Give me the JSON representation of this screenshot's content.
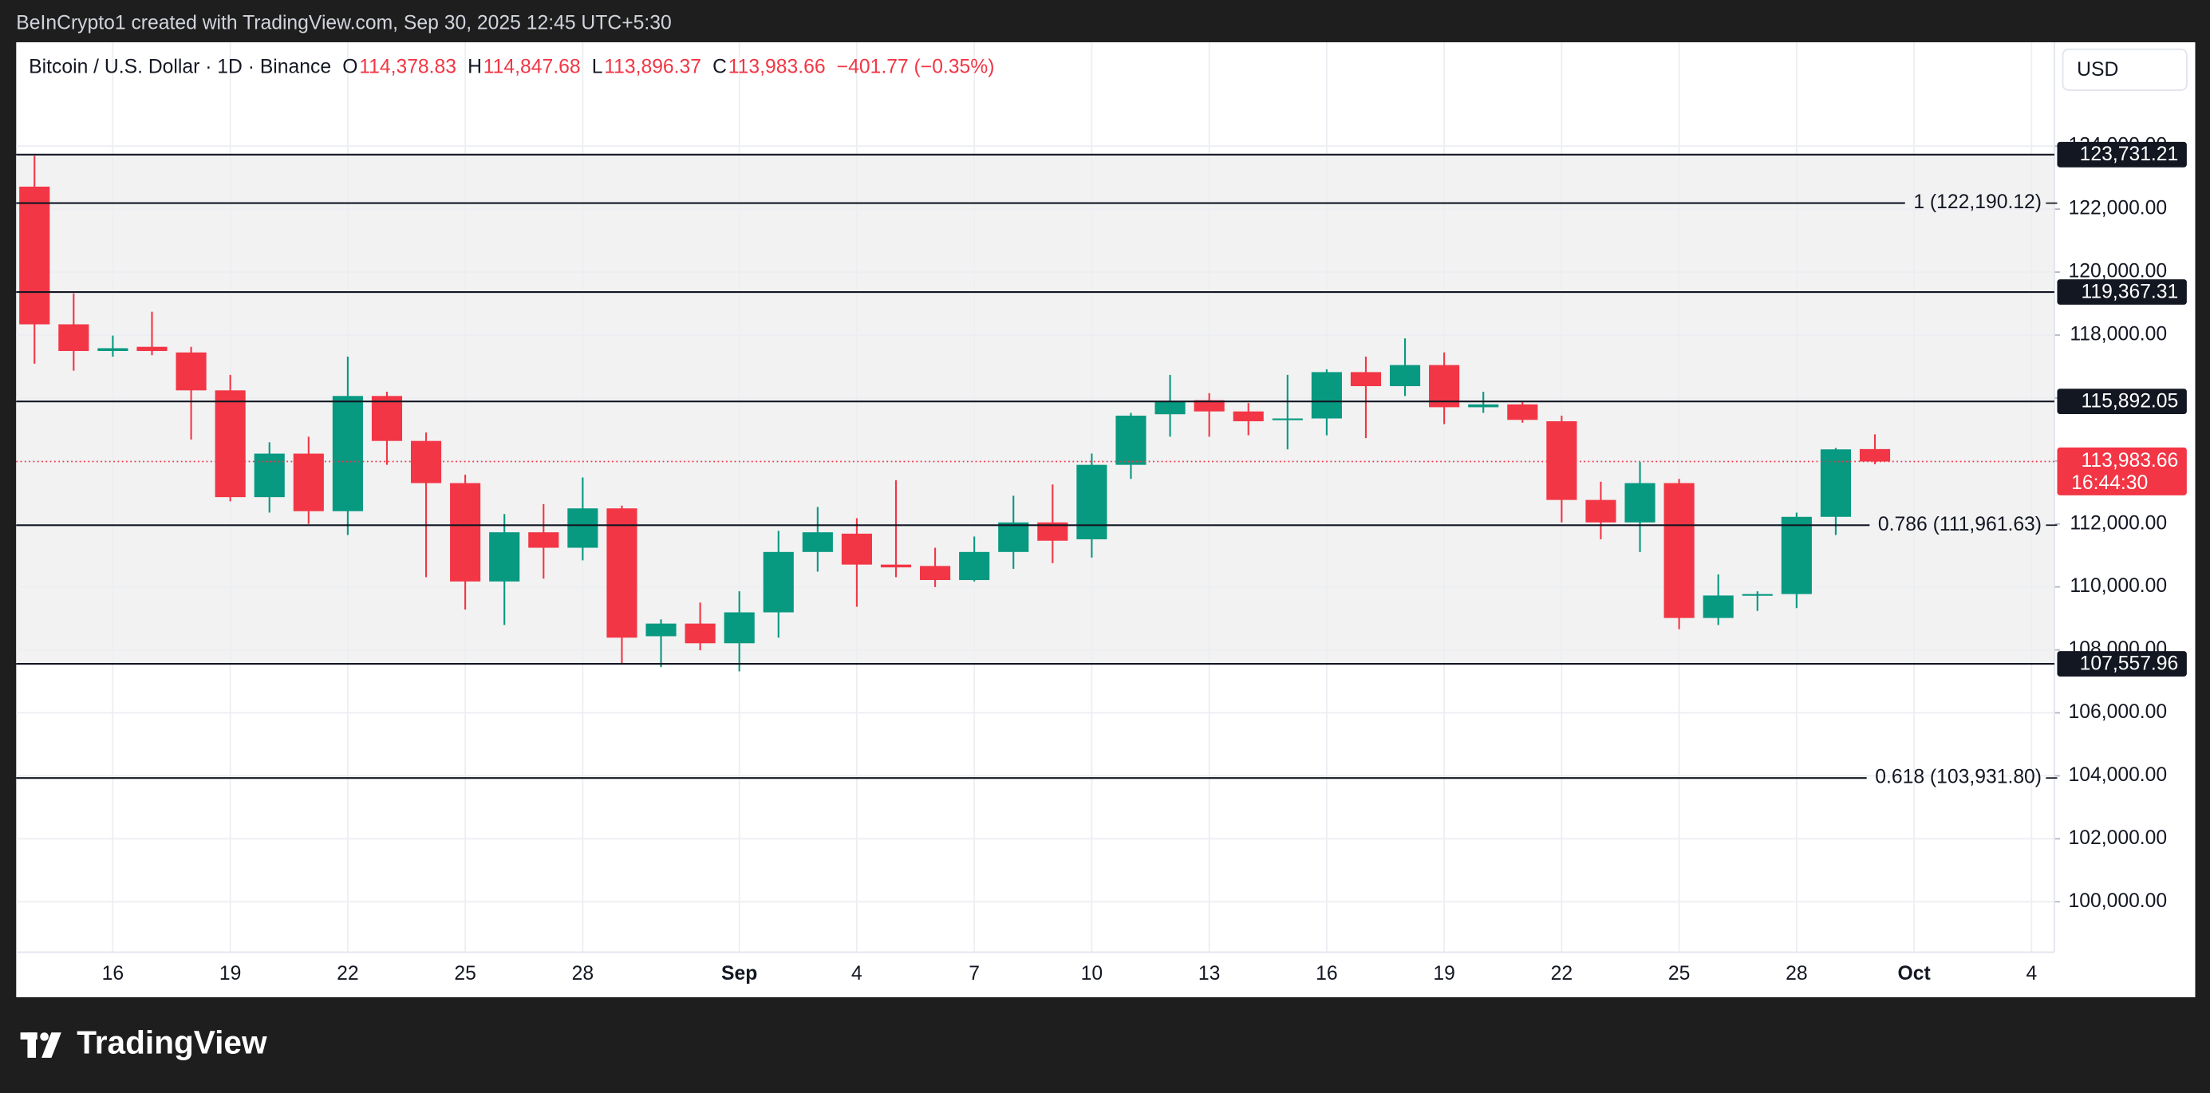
{
  "header": {
    "attribution": "BeInCrypto1 created with TradingView.com, Sep 30, 2025 12:45 UTC+5:30",
    "symbol": "Bitcoin / U.S. Dollar · 1D · Binance",
    "ohlc": [
      {
        "key": "O",
        "value": "114,378.83"
      },
      {
        "key": "H",
        "value": "114,847.68"
      },
      {
        "key": "L",
        "value": "113,896.37"
      },
      {
        "key": "C",
        "value": "113,983.66"
      }
    ],
    "change": "−401.77 (−0.35%)",
    "currency": "USD"
  },
  "footer": {
    "brand": "TradingView"
  },
  "chart_data": {
    "type": "candlestick",
    "up_color": "#089981",
    "down_color": "#f23645",
    "grid": true,
    "categories": [
      null,
      null,
      "16",
      null,
      null,
      "19",
      null,
      null,
      "22",
      null,
      null,
      "25",
      null,
      null,
      "28",
      null,
      null,
      null,
      "Sep",
      null,
      null,
      "4",
      null,
      null,
      "7",
      null,
      null,
      "10",
      null,
      null,
      "13",
      null,
      null,
      "16",
      null,
      null,
      "19",
      null,
      null,
      "22",
      null,
      null,
      "25",
      null,
      null,
      "28",
      null,
      null,
      "Oct",
      null,
      null,
      "4"
    ],
    "open": [
      122714,
      118341,
      117493,
      117627,
      117448,
      116243,
      112852,
      114235,
      112406,
      116065,
      114637,
      113298,
      110174,
      111736,
      111245,
      112495,
      108434,
      108836,
      108211,
      109193,
      111111,
      111692,
      110710,
      110665,
      110219,
      111111,
      112049,
      111513,
      113878,
      115485,
      115931,
      115574,
      115306,
      115351,
      116823,
      116377,
      117047,
      115708,
      115797,
      115262,
      112763,
      112049,
      113298,
      109014,
      109728,
      109773,
      112227,
      114378.83,
      null,
      null,
      null,
      null
    ],
    "high": [
      123696,
      119323,
      117984,
      118742,
      117627,
      116734,
      114593,
      114771,
      117314,
      116199,
      114905,
      113566,
      112316,
      112629,
      113477,
      112584,
      108970,
      109505,
      109862,
      111781,
      112540,
      112183,
      113388,
      111245,
      111602,
      112896,
      113254,
      114235,
      115530,
      116734,
      116154,
      115842,
      116734,
      116913,
      117314,
      117895,
      117448,
      116199,
      115887,
      115440,
      113343,
      113968,
      113432,
      110398,
      109862,
      112361,
      114414,
      114847.68,
      null,
      null,
      null,
      null
    ],
    "low": [
      117091,
      116868,
      117314,
      117359,
      114682,
      112718,
      112361,
      112004,
      111647,
      113878,
      110308,
      109282,
      108791,
      110264,
      110844,
      107542,
      107452,
      107988,
      107318,
      108389,
      110487,
      109371,
      110308,
      109996,
      110174,
      110576,
      110755,
      110933,
      113432,
      114771,
      114771,
      114816,
      114369,
      114816,
      114727,
      116065,
      115172,
      115529,
      115217,
      112049,
      111513,
      111111,
      108657,
      108791,
      109238,
      109326,
      111647,
      113896.37,
      null,
      null,
      null,
      null
    ],
    "close": [
      118341,
      117493,
      117582,
      117493,
      116243,
      112852,
      114235,
      112406,
      116065,
      114637,
      113298,
      110174,
      111736,
      111245,
      112495,
      108389,
      108836,
      108211,
      109193,
      111111,
      111736,
      110710,
      110621,
      110219,
      111111,
      112049,
      111468,
      113878,
      115440,
      115887,
      115574,
      115262,
      115351,
      116823,
      116377,
      117047,
      115708,
      115797,
      115306,
      112763,
      112049,
      113298,
      109014,
      109728,
      109773,
      112227,
      114369,
      113983.66,
      null,
      null,
      null,
      null
    ],
    "ylim": [
      98400,
      127300
    ],
    "yticks": [
      {
        "value": 100000,
        "label": "100,000.00"
      },
      {
        "value": 102000,
        "label": "102,000.00"
      },
      {
        "value": 104000,
        "label": "104,000.00"
      },
      {
        "value": 106000,
        "label": "106,000.00"
      },
      {
        "value": 108000,
        "label": "108,000.00"
      },
      {
        "value": 110000,
        "label": "110,000.00"
      },
      {
        "value": 112000,
        "label": "112,000.00"
      },
      {
        "value": 114000,
        "label": "114,000.00"
      },
      {
        "value": 116000,
        "label": "116,000.00"
      },
      {
        "value": 118000,
        "label": "118,000.00"
      },
      {
        "value": 120000,
        "label": "120,000.00"
      },
      {
        "value": 122000,
        "label": "122,000.00"
      },
      {
        "value": 124000,
        "label": "124,000.00"
      }
    ],
    "levels": [
      {
        "value": 123731.21,
        "label": "123,731.21"
      },
      {
        "value": 119367.31,
        "label": "119,367.31"
      },
      {
        "value": 115892.05,
        "label": "115,892.05"
      },
      {
        "value": 107557.96,
        "label": "107,557.96"
      }
    ],
    "fib_levels": [
      {
        "value": 122190.12,
        "label": "1 (122,190.12)"
      },
      {
        "value": 111961.63,
        "label": "0.786 (111,961.63)"
      },
      {
        "value": 103931.8,
        "label": "0.618 (103,931.80)"
      }
    ],
    "last_price": {
      "value": 113983.66,
      "label": "113,983.66",
      "countdown": "16:44:30",
      "color": "#f23645"
    }
  }
}
